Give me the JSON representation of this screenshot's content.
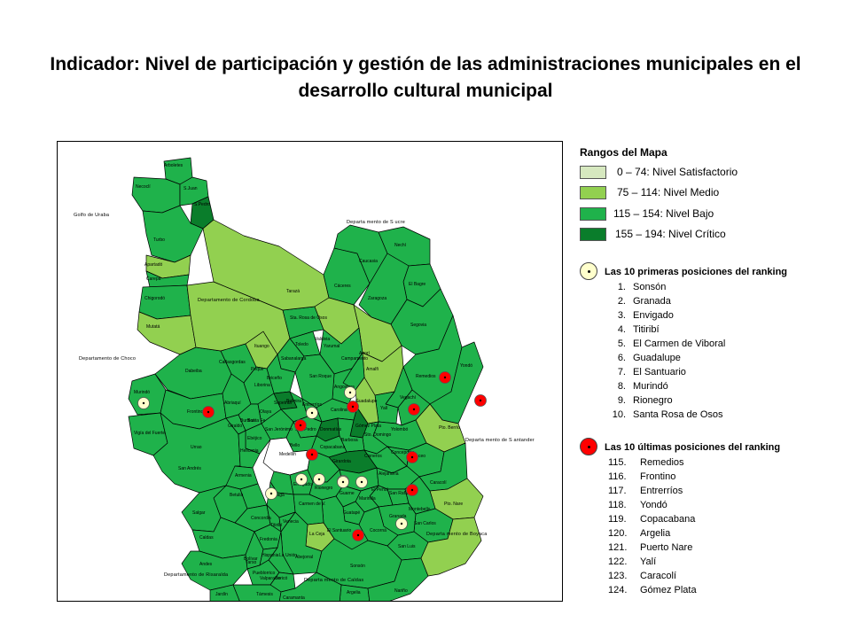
{
  "title": "Indicador: Nivel de participación y gestión de las administraciones municipales en el desarrollo cultural municipal",
  "colors": {
    "satisfactorio": "#d6e8bf",
    "medio": "#92d050",
    "bajo": "#1fb24b",
    "critico": "#0a7d2b",
    "top_marker": "#ffffcc",
    "bottom_marker": "#ff0000",
    "border": "#000000"
  },
  "legend": {
    "title": "Rangos del Mapa",
    "ranges": [
      {
        "label": "0 – 74: Nivel Satisfactorio",
        "color": "#d6e8bf"
      },
      {
        "label": "75 – 114: Nivel Medio",
        "color": "#92d050"
      },
      {
        "label": "115 – 154: Nivel Bajo",
        "color": "#1fb24b"
      },
      {
        "label": "155 – 194: Nivel Crítico",
        "color": "#0a7d2b"
      }
    ]
  },
  "top_ranking": {
    "heading": "Las 10 primeras posiciones del ranking",
    "marker_icon": "yellow-dot-marker",
    "items": [
      {
        "num": "1.",
        "name": "Sonsón"
      },
      {
        "num": "2.",
        "name": "Granada"
      },
      {
        "num": "3.",
        "name": "Envigado"
      },
      {
        "num": "4.",
        "name": "Titiribí"
      },
      {
        "num": "5.",
        "name": "El Carmen de Viboral"
      },
      {
        "num": "6.",
        "name": "Guadalupe"
      },
      {
        "num": "7.",
        "name": "El Santuario"
      },
      {
        "num": "8.",
        "name": "Murindó"
      },
      {
        "num": "9.",
        "name": "Rionegro"
      },
      {
        "num": "10.",
        "name": "Santa Rosa de Osos"
      }
    ]
  },
  "bottom_ranking": {
    "heading": "Las 10 últimas posiciones del ranking",
    "marker_icon": "red-dot-marker",
    "items": [
      {
        "num": "115.",
        "name": "Remedios"
      },
      {
        "num": "116.",
        "name": "Frontino"
      },
      {
        "num": "117.",
        "name": "Entrerríos"
      },
      {
        "num": "118.",
        "name": "Yondó"
      },
      {
        "num": "119.",
        "name": "Copacabana"
      },
      {
        "num": "120.",
        "name": "Argelia"
      },
      {
        "num": "121.",
        "name": "Puerto Nare"
      },
      {
        "num": "122.",
        "name": "Yalí"
      },
      {
        "num": "123.",
        "name": "Caracolí"
      },
      {
        "num": "124.",
        "name": "Gómez Plata"
      }
    ]
  },
  "map": {
    "region_labels": {
      "golfo": "Golfo de Uraba",
      "sucre": "Departa mento de S ucre",
      "cordoba": "Departamento de Cordoba",
      "choco": "Departamento de Choco",
      "santander": "Departa mento de S antander",
      "boyaca": "Departa mento de Boyaca",
      "risaralda": "Departamento de Risaralda",
      "caldas": "Departa mento de Caldas"
    },
    "municipalities": [
      "Arboletes",
      "Necoclí",
      "S.Juan",
      "S.Pedro",
      "Turbo",
      "Apartadó",
      "Carepa",
      "Chigorodó",
      "Mutatá",
      "Murindó",
      "Vigía del Fuerte",
      "Dabeiba",
      "Frontino",
      "Urrao",
      "Peque",
      "Ituango",
      "Cañasgordas",
      "Abriaquí",
      "Sabanalarga",
      "Toledo",
      "Yarumal",
      "Campamento",
      "Angostura",
      "Anorí",
      "Valdivia",
      "Tarazá",
      "Cáceres",
      "Caucasia",
      "Nechí",
      "El Bagre",
      "Zaragoza",
      "Segovia",
      "Remedios",
      "Yondó",
      "Pto. Berrío",
      "Maceo",
      "Caracolí",
      "Pto. Nare",
      "San Luis",
      "San Carlos",
      "Granada",
      "Cocorná",
      "Sonsón",
      "Argelia",
      "Nariño",
      "Abejorral",
      "Salgar",
      "Betulia",
      "Concordia",
      "Titiribí",
      "Andes",
      "Jardín",
      "Támesis",
      "Valparaíso",
      "Caramanta",
      "Santa Fe",
      "Sopetrán",
      "Olaya",
      "Liborina",
      "Buriticá",
      "Giraldo",
      "Heliconia",
      "Ebéjico",
      "San Jerónimo",
      "Armenia",
      "Amalfi",
      "Vegachí",
      "Yalí",
      "Yolombó",
      "Cisneros",
      "Sto. Domingo",
      "Gómez Plata",
      "Guadalupe",
      "Carolina",
      "Entrerríos",
      "Belmira",
      "San Pedro",
      "Donmatías",
      "Barbosa",
      "Girardota",
      "Copacabana",
      "Bello",
      "Medellín",
      "Envigado",
      "Rionegro",
      "Guarne",
      "Marinilla",
      "El Peñol",
      "Guatapé",
      "El Santuario",
      "Carmen de V.",
      "La Ceja",
      "La Unión",
      "Fredonia",
      "Venecia",
      "Amagá",
      "Caldas",
      "Bolívar",
      "Hispania",
      "Tarso",
      "Pueblorrico",
      "Jericó",
      "Montebello",
      "San Rafael",
      "Alejandría",
      "Concepción",
      "San Roque",
      "Sta. Rosa de Osos",
      "Briceño",
      "San Andrés",
      "Urrao"
    ]
  }
}
